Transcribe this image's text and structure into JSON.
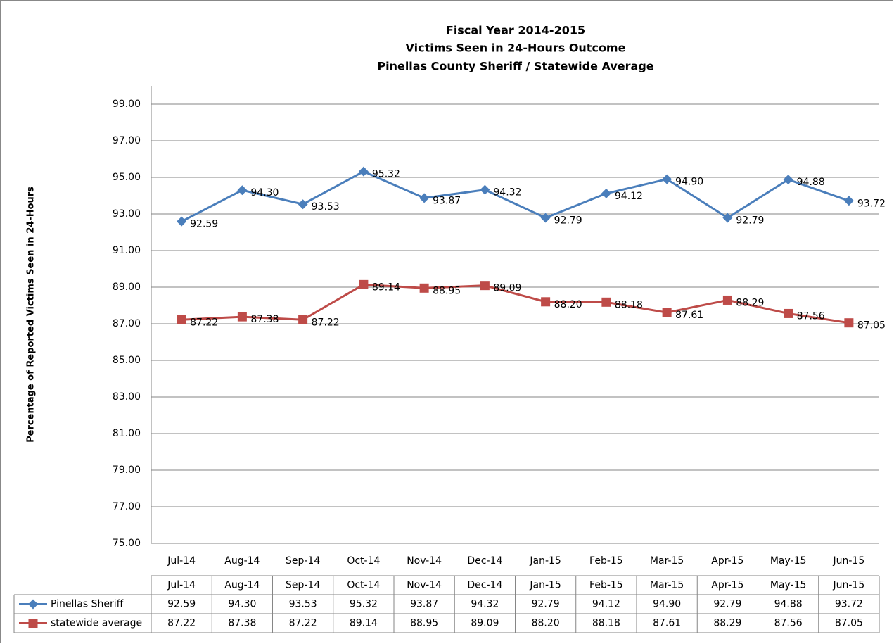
{
  "chart_data": {
    "type": "line",
    "title": [
      "Fiscal Year 2014-2015",
      "Victims Seen in 24-Hours Outcome",
      "Pinellas County Sheriff / Statewide Average"
    ],
    "y_label": "Percentage of Reported Victims Seen in 24-Hours",
    "categories": [
      "Jul-14",
      "Aug-14",
      "Sep-14",
      "Oct-14",
      "Nov-14",
      "Dec-14",
      "Jan-15",
      "Feb-15",
      "Mar-15",
      "Apr-15",
      "May-15",
      "Jun-15"
    ],
    "series": [
      {
        "name": "Pinellas Sheriff",
        "color": "#4a7ebb",
        "marker": "diamond",
        "values": [
          92.59,
          94.3,
          93.53,
          95.32,
          93.87,
          94.32,
          92.79,
          94.12,
          94.9,
          92.79,
          94.88,
          93.72
        ],
        "value_labels": [
          "92.59",
          "94.30",
          "93.53",
          "95.32",
          "93.87",
          "94.32",
          "92.79",
          "94.12",
          "94.90",
          "92.79",
          "94.88",
          "93.72"
        ]
      },
      {
        "name": "statewide average",
        "color": "#be4b48",
        "marker": "square",
        "values": [
          87.22,
          87.38,
          87.22,
          89.14,
          88.95,
          89.09,
          88.2,
          88.18,
          87.61,
          88.29,
          87.56,
          87.05
        ],
        "value_labels": [
          "87.22",
          "87.38",
          "87.22",
          "89.14",
          "88.95",
          "89.09",
          "88.20",
          "88.18",
          "87.61",
          "88.29",
          "87.56",
          "87.05"
        ]
      }
    ],
    "ylim": [
      75,
      100
    ],
    "yticks": [
      {
        "value": 75,
        "label": "75.00"
      },
      {
        "value": 77,
        "label": "77.00"
      },
      {
        "value": 79,
        "label": "79.00"
      },
      {
        "value": 81,
        "label": "81.00"
      },
      {
        "value": 83,
        "label": "83.00"
      },
      {
        "value": 85,
        "label": "85.00"
      },
      {
        "value": 87,
        "label": "87.00"
      },
      {
        "value": 89,
        "label": "89.00"
      },
      {
        "value": 91,
        "label": "91.00"
      },
      {
        "value": 93,
        "label": "93.00"
      },
      {
        "value": 95,
        "label": "95.00"
      },
      {
        "value": 97,
        "label": "97.00"
      },
      {
        "value": 99,
        "label": "99.00"
      }
    ],
    "grid": true,
    "data_table": true
  }
}
